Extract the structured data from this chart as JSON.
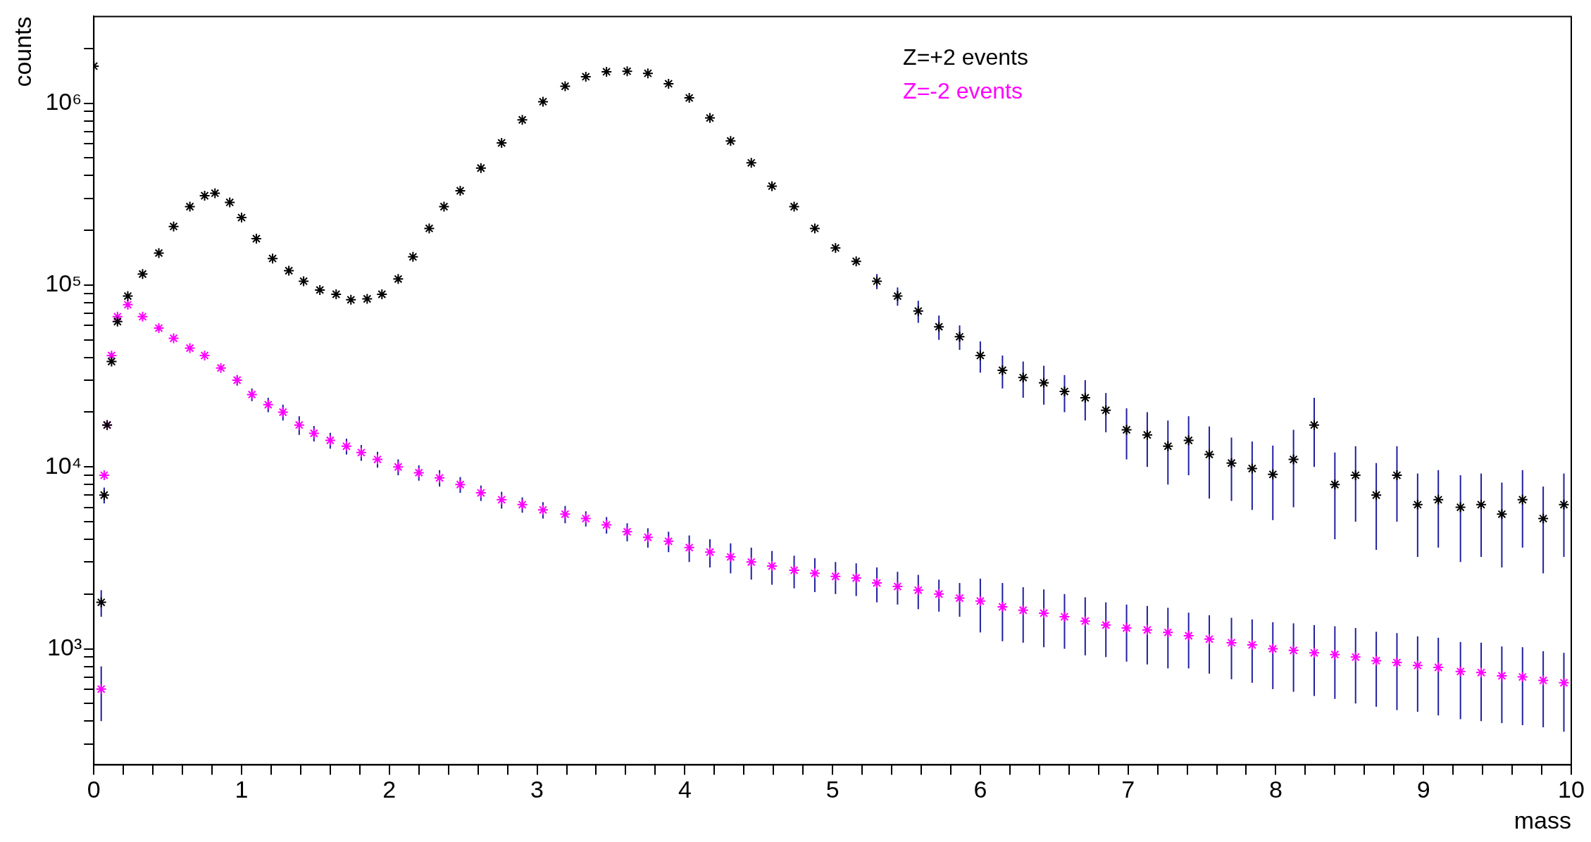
{
  "chart_data": {
    "type": "scatter",
    "xlabel": "mass",
    "ylabel": "counts",
    "log": "y",
    "grid": false,
    "legend": "top",
    "marker": "cross",
    "xlim": [
      0,
      10
    ],
    "ylim": [
      230,
      3000000
    ],
    "xticks": [
      0,
      {
        "value": 0.2,
        "label": null
      },
      {
        "value": 0.4,
        "label": null
      },
      {
        "value": 0.6,
        "label": null
      },
      {
        "value": 0.8,
        "label": null
      },
      1,
      {
        "value": 1.2,
        "label": null
      },
      {
        "value": 1.4,
        "label": null
      },
      {
        "value": 1.6,
        "label": null
      },
      {
        "value": 1.8,
        "label": null
      },
      2,
      {
        "value": 2.2,
        "label": null
      },
      {
        "value": 2.4,
        "label": null
      },
      {
        "value": 2.6,
        "label": null
      },
      {
        "value": 2.8,
        "label": null
      },
      3,
      {
        "value": 3.2,
        "label": null
      },
      {
        "value": 3.4,
        "label": null
      },
      {
        "value": 3.6,
        "label": null
      },
      {
        "value": 3.8,
        "label": null
      },
      4,
      {
        "value": 4.2,
        "label": null
      },
      {
        "value": 4.4,
        "label": null
      },
      {
        "value": 4.6,
        "label": null
      },
      {
        "value": 4.8,
        "label": null
      },
      5,
      {
        "value": 5.2,
        "label": null
      },
      {
        "value": 5.4,
        "label": null
      },
      {
        "value": 5.6,
        "label": null
      },
      {
        "value": 5.8,
        "label": null
      },
      6,
      {
        "value": 6.2,
        "label": null
      },
      {
        "value": 6.4,
        "label": null
      },
      {
        "value": 6.6,
        "label": null
      },
      {
        "value": 6.8,
        "label": null
      },
      7,
      {
        "value": 7.2,
        "label": null
      },
      {
        "value": 7.4,
        "label": null
      },
      {
        "value": 7.6,
        "label": null
      },
      {
        "value": 7.8,
        "label": null
      },
      8,
      {
        "value": 8.2,
        "label": null
      },
      {
        "value": 8.4,
        "label": null
      },
      {
        "value": 8.6,
        "label": null
      },
      {
        "value": 8.8,
        "label": null
      },
      9,
      {
        "value": 9.2,
        "label": null
      },
      {
        "value": 9.4,
        "label": null
      },
      {
        "value": 9.6,
        "label": null
      },
      {
        "value": 9.8,
        "label": null
      },
      10
    ],
    "yticks": [
      {
        "value": 300,
        "label": null
      },
      {
        "value": 400,
        "label": null
      },
      {
        "value": 500,
        "label": null
      },
      {
        "value": 600,
        "label": null
      },
      {
        "value": 700,
        "label": null
      },
      {
        "value": 800,
        "label": null
      },
      {
        "value": 900,
        "label": null
      },
      {
        "value": 1000,
        "label": "10³"
      },
      {
        "value": 2000,
        "label": null
      },
      {
        "value": 3000,
        "label": null
      },
      {
        "value": 4000,
        "label": null
      },
      {
        "value": 5000,
        "label": null
      },
      {
        "value": 6000,
        "label": null
      },
      {
        "value": 7000,
        "label": null
      },
      {
        "value": 8000,
        "label": null
      },
      {
        "value": 9000,
        "label": null
      },
      {
        "value": 10000,
        "label": "10⁴"
      },
      {
        "value": 20000,
        "label": null
      },
      {
        "value": 30000,
        "label": null
      },
      {
        "value": 40000,
        "label": null
      },
      {
        "value": 50000,
        "label": null
      },
      {
        "value": 60000,
        "label": null
      },
      {
        "value": 70000,
        "label": null
      },
      {
        "value": 80000,
        "label": null
      },
      {
        "value": 90000,
        "label": null
      },
      {
        "value": 100000,
        "label": "10⁵"
      },
      {
        "value": 200000,
        "label": null
      },
      {
        "value": 300000,
        "label": null
      },
      {
        "value": 400000,
        "label": null
      },
      {
        "value": 500000,
        "label": null
      },
      {
        "value": 600000,
        "label": null
      },
      {
        "value": 700000,
        "label": null
      },
      {
        "value": 800000,
        "label": null
      },
      {
        "value": 900000,
        "label": null
      },
      {
        "value": 1000000,
        "label": "10⁶"
      },
      {
        "value": 2000000,
        "label": null
      }
    ],
    "series": [
      {
        "name": "Z=+2 events",
        "color": "#000000",
        "x": [
          0,
          0.05,
          0.07,
          0.09,
          0.12,
          0.16,
          0.23,
          0.33,
          0.44,
          0.54,
          0.65,
          0.75,
          0.82,
          0.92,
          1.0,
          1.1,
          1.21,
          1.32,
          1.42,
          1.53,
          1.64,
          1.74,
          1.85,
          1.95,
          2.06,
          2.16,
          2.27,
          2.37,
          2.48,
          2.62,
          2.76,
          2.9,
          3.04,
          3.19,
          3.33,
          3.47,
          3.61,
          3.75,
          3.89,
          4.03,
          4.17,
          4.31,
          4.45,
          4.59,
          4.74,
          4.88,
          5.02,
          5.16,
          5.3,
          5.44,
          5.58,
          5.72,
          5.86,
          6.0,
          6.15,
          6.29,
          6.43,
          6.57,
          6.71,
          6.85,
          6.99,
          7.13,
          7.27,
          7.41,
          7.55,
          7.7,
          7.84,
          7.98,
          8.12,
          8.26,
          8.4,
          8.54,
          8.68,
          8.82,
          8.96,
          9.1,
          9.25,
          9.39,
          9.53,
          9.67,
          9.81,
          9.95
        ],
        "values": [
          1600000,
          1800,
          7000,
          17000,
          38000,
          63000,
          87000,
          115000,
          150000,
          210000,
          270000,
          310000,
          320000,
          285000,
          235000,
          180000,
          140000,
          120000,
          105000,
          94000,
          89000,
          83000,
          84000,
          89000,
          108000,
          143000,
          205000,
          270000,
          330000,
          440000,
          605000,
          810000,
          1020000,
          1240000,
          1400000,
          1490000,
          1500000,
          1460000,
          1280000,
          1070000,
          830000,
          620000,
          470000,
          350000,
          270000,
          205000,
          160000,
          135000,
          105000,
          87000,
          72000,
          59000,
          52000,
          41000,
          34000,
          31000,
          29000,
          26000,
          24000,
          20500,
          16000,
          15000,
          13000,
          14000,
          11700,
          10500,
          9800,
          9100,
          11000,
          17000,
          8000,
          9000,
          7000,
          9000,
          6200,
          6600,
          6000,
          6200,
          5500,
          6600,
          5200,
          6200
        ],
        "errors": [
          30000,
          300,
          700,
          null,
          null,
          2000,
          2500,
          3000,
          4000,
          5000,
          6000,
          7000,
          7000,
          6000,
          5000,
          5000,
          4000,
          4000,
          null,
          null,
          null,
          null,
          null,
          null,
          4000,
          5000,
          6000,
          7000,
          8000,
          10000,
          12000,
          15000,
          18000,
          20000,
          22000,
          22000,
          22000,
          22000,
          20000,
          18000,
          15000,
          12000,
          10000,
          9000,
          8000,
          null,
          null,
          null,
          10000,
          10000,
          10000,
          9000,
          8000,
          8000,
          7000,
          7000,
          7000,
          6000,
          6000,
          5000,
          5000,
          5000,
          5000,
          5000,
          5000,
          4000,
          4000,
          4000,
          5000,
          7000,
          4000,
          4000,
          3500,
          4000,
          3000,
          3000,
          3000,
          3000,
          2700,
          3000,
          2600,
          3000
        ]
      },
      {
        "name": "Z=-2 events",
        "color": "#ff00ff",
        "x": [
          0.05,
          0.07,
          0.09,
          0.12,
          0.16,
          0.23,
          0.33,
          0.44,
          0.54,
          0.65,
          0.75,
          0.86,
          0.97,
          1.07,
          1.18,
          1.28,
          1.39,
          1.49,
          1.6,
          1.71,
          1.81,
          1.92,
          2.06,
          2.2,
          2.34,
          2.48,
          2.62,
          2.76,
          2.9,
          3.04,
          3.19,
          3.33,
          3.47,
          3.61,
          3.75,
          3.89,
          4.03,
          4.17,
          4.31,
          4.45,
          4.59,
          4.74,
          4.88,
          5.02,
          5.16,
          5.3,
          5.44,
          5.58,
          5.72,
          5.86,
          6.0,
          6.15,
          6.29,
          6.43,
          6.57,
          6.71,
          6.85,
          6.99,
          7.13,
          7.27,
          7.41,
          7.55,
          7.7,
          7.84,
          7.98,
          8.12,
          8.26,
          8.4,
          8.54,
          8.68,
          8.82,
          8.96,
          9.1,
          9.25,
          9.39,
          9.53,
          9.67,
          9.81,
          9.95
        ],
        "values": [
          600,
          9000,
          17000,
          41000,
          67000,
          78000,
          67000,
          58000,
          51000,
          45000,
          41000,
          35000,
          30000,
          25000,
          22000,
          20000,
          17000,
          15300,
          14000,
          13000,
          12000,
          11000,
          10000,
          9300,
          8700,
          8000,
          7200,
          6600,
          6200,
          5800,
          5500,
          5200,
          4800,
          4400,
          4100,
          3900,
          3600,
          3400,
          3200,
          3000,
          2850,
          2700,
          2600,
          2500,
          2450,
          2300,
          2200,
          2100,
          2000,
          1900,
          1830,
          1700,
          1630,
          1570,
          1500,
          1420,
          1350,
          1300,
          1270,
          1230,
          1180,
          1130,
          1080,
          1050,
          1000,
          980,
          950,
          930,
          900,
          860,
          840,
          810,
          790,
          750,
          740,
          710,
          700,
          670,
          650
        ],
        "errors": [
          200,
          null,
          null,
          1500,
          2000,
          2500,
          2000,
          2000,
          null,
          null,
          null,
          null,
          2000,
          2000,
          2000,
          2000,
          2000,
          1500,
          1400,
          1300,
          1200,
          1100,
          1000,
          900,
          900,
          800,
          700,
          700,
          600,
          600,
          600,
          500,
          500,
          500,
          500,
          500,
          600,
          600,
          600,
          600,
          600,
          550,
          550,
          500,
          500,
          500,
          450,
          450,
          400,
          400,
          600,
          600,
          550,
          550,
          500,
          500,
          450,
          450,
          450,
          450,
          400,
          400,
          400,
          400,
          400,
          400,
          400,
          400,
          400,
          380,
          380,
          360,
          360,
          340,
          340,
          320,
          320,
          300,
          300
        ]
      }
    ]
  }
}
